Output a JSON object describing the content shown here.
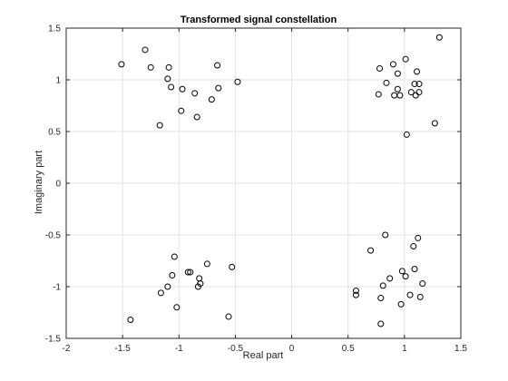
{
  "chart_data": {
    "type": "scatter",
    "title": "Transformed signal constellation",
    "xlabel": "Real part",
    "ylabel": "Imaginary part",
    "xlim": [
      -2,
      1.5
    ],
    "ylim": [
      -1.5,
      1.5
    ],
    "xticks": [
      -2,
      -1.5,
      -1,
      -0.5,
      0,
      0.5,
      1,
      1.5
    ],
    "yticks": [
      -1.5,
      -1,
      -0.5,
      0,
      0.5,
      1,
      1.5
    ],
    "xtick_labels": [
      "-2",
      "-1.5",
      "-1",
      "-0.5",
      "0",
      "0.5",
      "1",
      "1.5"
    ],
    "ytick_labels": [
      "-1.5",
      "-1",
      "-0.5",
      "0",
      "0.5",
      "1",
      "1.5"
    ],
    "grid": true,
    "marker": "open-circle",
    "colors": {
      "marker": "#000000",
      "grid": "#e3e3e3",
      "axes": "#262626"
    },
    "points": [
      [
        -1.51,
        1.15
      ],
      [
        -1.3,
        1.29
      ],
      [
        -1.25,
        1.12
      ],
      [
        -1.09,
        1.12
      ],
      [
        -1.1,
        1.01
      ],
      [
        -1.07,
        0.93
      ],
      [
        -0.97,
        0.91
      ],
      [
        -0.86,
        0.87
      ],
      [
        -0.66,
        1.14
      ],
      [
        -0.65,
        0.92
      ],
      [
        -0.48,
        0.98
      ],
      [
        -0.71,
        0.81
      ],
      [
        -0.98,
        0.7
      ],
      [
        -0.84,
        0.64
      ],
      [
        -1.17,
        0.56
      ],
      [
        1.31,
        1.41
      ],
      [
        1.01,
        1.2
      ],
      [
        0.78,
        1.11
      ],
      [
        0.9,
        1.15
      ],
      [
        1.11,
        1.08
      ],
      [
        0.94,
        1.06
      ],
      [
        0.84,
        0.97
      ],
      [
        1.09,
        0.96
      ],
      [
        1.13,
        0.96
      ],
      [
        0.94,
        0.91
      ],
      [
        1.06,
        0.88
      ],
      [
        0.77,
        0.86
      ],
      [
        0.91,
        0.85
      ],
      [
        0.96,
        0.85
      ],
      [
        1.1,
        0.85
      ],
      [
        1.13,
        0.88
      ],
      [
        1.27,
        0.58
      ],
      [
        1.02,
        0.47
      ],
      [
        -1.04,
        -0.71
      ],
      [
        -0.75,
        -0.78
      ],
      [
        -0.53,
        -0.81
      ],
      [
        -0.92,
        -0.86
      ],
      [
        -0.9,
        -0.86
      ],
      [
        -1.06,
        -0.89
      ],
      [
        -0.82,
        -0.92
      ],
      [
        -0.81,
        -0.97
      ],
      [
        -0.83,
        -1.0
      ],
      [
        -1.1,
        -1.0
      ],
      [
        -1.16,
        -1.06
      ],
      [
        -1.02,
        -1.2
      ],
      [
        -0.56,
        -1.29
      ],
      [
        -1.43,
        -1.32
      ],
      [
        1.12,
        -0.53
      ],
      [
        0.83,
        -0.5
      ],
      [
        1.08,
        -0.61
      ],
      [
        0.7,
        -0.65
      ],
      [
        0.98,
        -0.85
      ],
      [
        1.09,
        -0.83
      ],
      [
        1.01,
        -0.9
      ],
      [
        0.87,
        -0.92
      ],
      [
        1.16,
        -0.97
      ],
      [
        0.81,
        -0.99
      ],
      [
        0.57,
        -1.04
      ],
      [
        0.57,
        -1.08
      ],
      [
        1.05,
        -1.08
      ],
      [
        1.14,
        -1.1
      ],
      [
        0.79,
        -1.11
      ],
      [
        0.97,
        -1.17
      ],
      [
        0.79,
        -1.36
      ]
    ]
  }
}
